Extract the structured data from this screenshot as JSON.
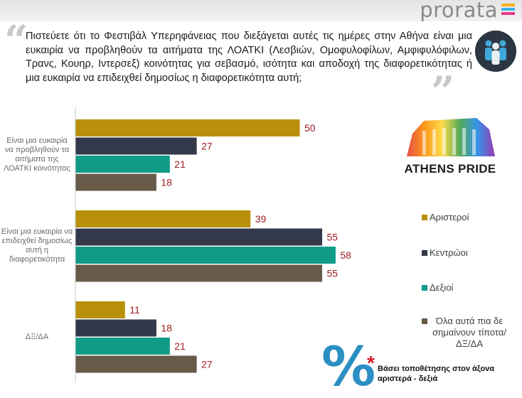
{
  "brand": {
    "name": "prorata",
    "mark_colors": [
      "#f2b21e",
      "#3cb3e2",
      "#e53a8d"
    ]
  },
  "question": {
    "text": "Πιστεύετε ότι το Φεστιβάλ Υπερηφάνειας που διεξάγεται αυτές τις ημέρες στην Αθήνα είναι μια ευκαιρία να προβληθούν τα αιτήματα της ΛΟΑΤΚΙ (Λεσβιών, Ομοφυλοφίλων, Αμφιφυλόφιλων, Τρανς, Κουηρ, Ιντερσεξ) κοινότητας για σεβασμό, ισότητα και αποδοχή της διαφορετικότητας ή μια ευκαιρία να επιδειχθεί δημοσίως η διαφορετικότητα αυτή;"
  },
  "logo": {
    "text": "ATHENS PRIDE"
  },
  "footer": {
    "symbol": "%",
    "asterisk": "*",
    "basis": "Βάσει τοποθέτησης στον άξονα αριστερά - δεξιά"
  },
  "chart_data": {
    "type": "bar",
    "orientation": "horizontal",
    "categories": [
      "Είναι μια ευκαιρία να προβληθούν τα αιτήματα της ΛΟΑΤΚΙ κοινότητας",
      "Είναι μια ευκαιρία να επιδειχθεί δημοσίως αυτή η διαφορετικότητα",
      "ΔΞ/ΔΑ"
    ],
    "series": [
      {
        "name": "Αριστεροί",
        "color": "#b8900a",
        "values": [
          50,
          39,
          11
        ]
      },
      {
        "name": "Κεντρώοι",
        "color": "#33384a",
        "values": [
          27,
          55,
          18
        ]
      },
      {
        "name": "Δεξιοί",
        "color": "#109b86",
        "values": [
          21,
          58,
          21
        ]
      },
      {
        "name": "Όλα αυτά πια δε σημαίνουν τίποτα/ΔΞ/ΔΑ",
        "color": "#675a48",
        "values": [
          18,
          55,
          27
        ]
      }
    ],
    "xlim": [
      0,
      60
    ],
    "value_label_color": "#9e1c20",
    "legend_position": "right"
  }
}
